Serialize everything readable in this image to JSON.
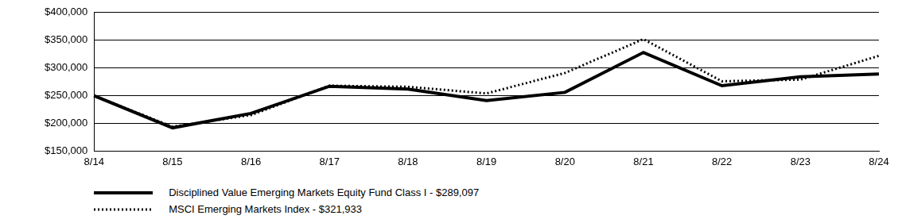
{
  "chart_data": {
    "type": "line",
    "categories": [
      "8/14",
      "8/15",
      "8/16",
      "8/17",
      "8/18",
      "8/19",
      "8/20",
      "8/21",
      "8/22",
      "8/23",
      "8/24"
    ],
    "series": [
      {
        "name": "Disciplined Value Emerging Markets Equity Fund Class I - $289,097",
        "color": "#000000",
        "line_style": "solid",
        "values": [
          250000,
          192000,
          218000,
          267000,
          262000,
          241000,
          256000,
          328000,
          268000,
          284000,
          289097
        ]
      },
      {
        "name": "MSCI Emerging Markets Index - $321,933",
        "color": "#000000",
        "line_style": "dotted",
        "values": [
          250000,
          194000,
          215000,
          268000,
          266000,
          254000,
          291000,
          352000,
          276000,
          279000,
          321933
        ]
      }
    ],
    "ylim": [
      150000,
      400000
    ],
    "yticks": [
      {
        "value": 150000,
        "label": "$150,000"
      },
      {
        "value": 200000,
        "label": "$200,000"
      },
      {
        "value": 250000,
        "label": "$250,000"
      },
      {
        "value": 300000,
        "label": "$300,000"
      },
      {
        "value": 350000,
        "label": "$350,000"
      },
      {
        "value": 400000,
        "label": "$400,000"
      }
    ],
    "grid": true,
    "legend": "bottom"
  }
}
